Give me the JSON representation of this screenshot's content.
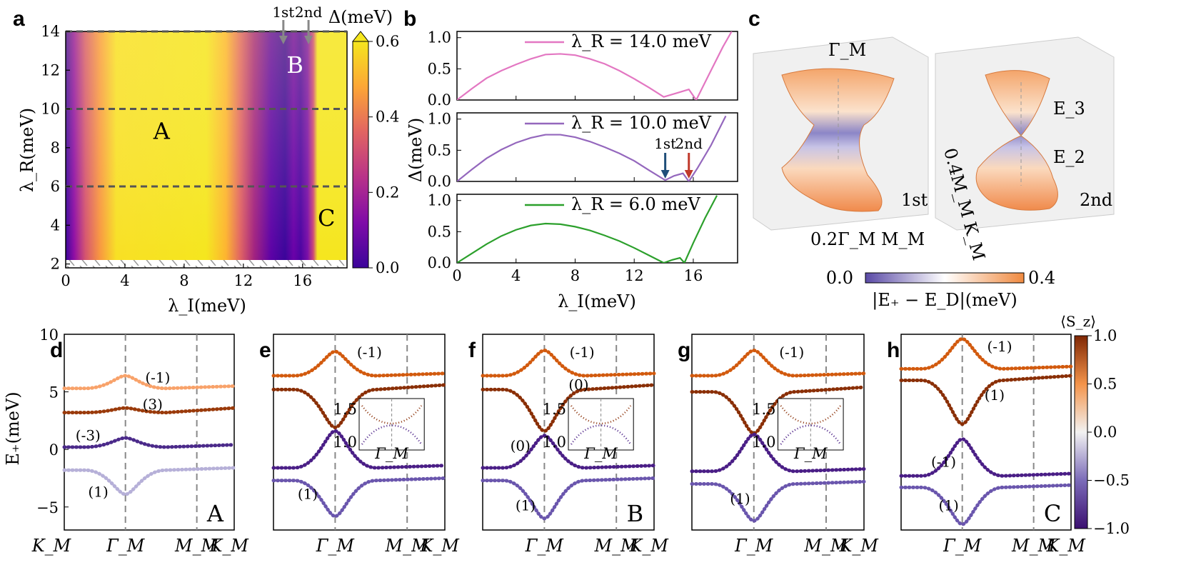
{
  "panel_labels": [
    "a",
    "b",
    "c",
    "d",
    "e",
    "f",
    "g",
    "h"
  ],
  "chart_data": [
    {
      "panel": "a",
      "type": "heatmap",
      "xlabel": "λ_I(meV)",
      "ylabel": "λ_R(meV)",
      "xlim": [
        0,
        19
      ],
      "ylim": [
        1.8,
        14
      ],
      "xticks": [
        "0",
        "4",
        "8",
        "12",
        "16"
      ],
      "yticks": [
        "2",
        "4",
        "6",
        "8",
        "10",
        "12",
        "14"
      ],
      "colorbar": {
        "label": "Δ(meV)",
        "ticks": [
          "0.0",
          "0.2",
          "0.4",
          "0.6"
        ],
        "range": [
          0,
          0.6
        ]
      },
      "dashed_lines_lambda_R": [
        14,
        10,
        6
      ],
      "region_labels": [
        {
          "text": "A",
          "x": 6.5,
          "y": 8.9
        },
        {
          "text": "B",
          "x": 15.5,
          "y": 12.3
        },
        {
          "text": "C",
          "x": 17.6,
          "y": 4.4
        }
      ],
      "arrows": [
        {
          "text": "1st",
          "x": 14.7
        },
        {
          "text": "2nd",
          "x": 16.4
        }
      ]
    },
    {
      "panel": "b",
      "type": "line",
      "xlabel": "λ_I(meV)",
      "ylabel": "Δ(meV)",
      "xlim": [
        0,
        19
      ],
      "ylim": [
        0,
        1.1
      ],
      "xticks": [
        "0",
        "4",
        "8",
        "12",
        "16"
      ],
      "yticks": [
        "0.0",
        "0.5",
        "1.0"
      ],
      "series": [
        {
          "name": "λ_R = 14.0 meV",
          "color": "#e377c2",
          "x": [
            0,
            1,
            2,
            3,
            4,
            5,
            6,
            7,
            8,
            9,
            10,
            11,
            12,
            13,
            14,
            15,
            15.7,
            16.2,
            17.0,
            18.0,
            18.6
          ],
          "values": [
            0.0,
            0.18,
            0.35,
            0.47,
            0.57,
            0.66,
            0.73,
            0.74,
            0.72,
            0.66,
            0.58,
            0.47,
            0.34,
            0.2,
            0.05,
            0.12,
            0.17,
            0.0,
            0.38,
            0.85,
            1.1
          ]
        },
        {
          "name": "λ_R = 10.0 meV",
          "color": "#9467bd",
          "x": [
            0,
            1,
            2,
            3,
            4,
            5,
            6,
            7,
            8,
            9,
            10,
            11,
            12,
            13,
            14.1,
            14.7,
            15.3,
            15.7,
            16.3,
            17.2,
            18.2
          ],
          "values": [
            0.0,
            0.19,
            0.37,
            0.51,
            0.62,
            0.7,
            0.75,
            0.75,
            0.71,
            0.64,
            0.55,
            0.45,
            0.33,
            0.18,
            0.02,
            0.09,
            0.13,
            0.0,
            0.22,
            0.58,
            1.05
          ]
        },
        {
          "name": "λ_R = 6.0 meV",
          "color": "#2ca02c",
          "x": [
            0,
            1,
            2,
            3,
            4,
            5,
            6,
            7,
            8,
            9,
            10,
            11,
            12,
            13,
            14.0,
            14.6,
            15.1,
            15.4,
            16.0,
            16.8,
            17.6
          ],
          "values": [
            0.0,
            0.15,
            0.3,
            0.43,
            0.53,
            0.6,
            0.63,
            0.62,
            0.58,
            0.52,
            0.44,
            0.35,
            0.24,
            0.12,
            0.0,
            0.05,
            0.08,
            0.0,
            0.32,
            0.72,
            1.08
          ]
        }
      ],
      "arrows": [
        {
          "text": "1st",
          "x": 14.1,
          "color": "#1f4e79"
        },
        {
          "text": "2nd",
          "x": 15.7,
          "color": "#c0392b"
        }
      ]
    },
    {
      "panel": "c",
      "type": "other",
      "description_labels": {
        "gamma": "Γ_M",
        "e3": "E_3",
        "e2": "E_2",
        "first": "1st",
        "second": "2nd",
        "axis1": "0.2Γ_M M_M",
        "axis2": "0.4M_M K_M"
      },
      "colorbar": {
        "label": "|E₊ − E_D|(meV)",
        "min": "0.0",
        "max": "0.4"
      }
    },
    {
      "panels": [
        "d",
        "e",
        "f",
        "g",
        "h"
      ],
      "type": "scatter",
      "ylabel": "E₊(meV)",
      "ylim": [
        -7,
        10
      ],
      "yticks": [
        "10",
        "5",
        "0",
        "−5"
      ],
      "xticks": [
        "K_M",
        "Γ_M",
        "M_M",
        "K_M"
      ],
      "colorbar": {
        "label": "⟨S_z⟩",
        "ticks": [
          "1.0",
          "0.5",
          "0.0",
          "−0.5",
          "−1.0"
        ],
        "range": [
          -1,
          1
        ]
      },
      "band_labels": {
        "d": [
          "(-1)",
          "(3)",
          "(-3)",
          "(1)"
        ],
        "e": [
          "(-1)",
          "(1)"
        ],
        "f": [
          "(-1)",
          "(0)",
          "(0)",
          "(1)"
        ],
        "g": [
          "(-1)",
          "(1)"
        ],
        "h": [
          "(-1)",
          "(1)",
          "(-1)",
          "(1)"
        ]
      },
      "region_tags": {
        "d": "A",
        "f": "B",
        "h": "C"
      },
      "inset": {
        "yticks": [
          "1.5",
          "1.0"
        ],
        "xtick": "Γ_M"
      }
    }
  ]
}
